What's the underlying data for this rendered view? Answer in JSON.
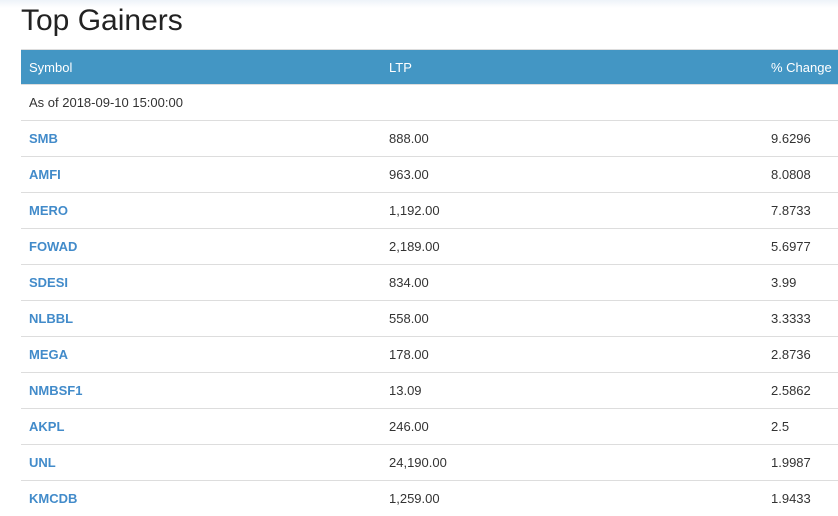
{
  "title": "Top Gainers",
  "columns": [
    "Symbol",
    "LTP",
    "% Change"
  ],
  "as_of": "As of 2018-09-10 15:00:00",
  "rows": [
    {
      "symbol": "SMB",
      "ltp": "888.00",
      "change": "9.6296"
    },
    {
      "symbol": "AMFI",
      "ltp": "963.00",
      "change": "8.0808"
    },
    {
      "symbol": "MERO",
      "ltp": "1,192.00",
      "change": "7.8733"
    },
    {
      "symbol": "FOWAD",
      "ltp": "2,189.00",
      "change": "5.6977"
    },
    {
      "symbol": "SDESI",
      "ltp": "834.00",
      "change": "3.99"
    },
    {
      "symbol": "NLBBL",
      "ltp": "558.00",
      "change": "3.3333"
    },
    {
      "symbol": "MEGA",
      "ltp": "178.00",
      "change": "2.8736"
    },
    {
      "symbol": "NMBSF1",
      "ltp": "13.09",
      "change": "2.5862"
    },
    {
      "symbol": "AKPL",
      "ltp": "246.00",
      "change": "2.5"
    },
    {
      "symbol": "UNL",
      "ltp": "24,190.00",
      "change": "1.9987"
    },
    {
      "symbol": "KMCDB",
      "ltp": "1,259.00",
      "change": "1.9433"
    }
  ],
  "colors": {
    "header_bg": "#4396c4",
    "link": "#428bca"
  }
}
